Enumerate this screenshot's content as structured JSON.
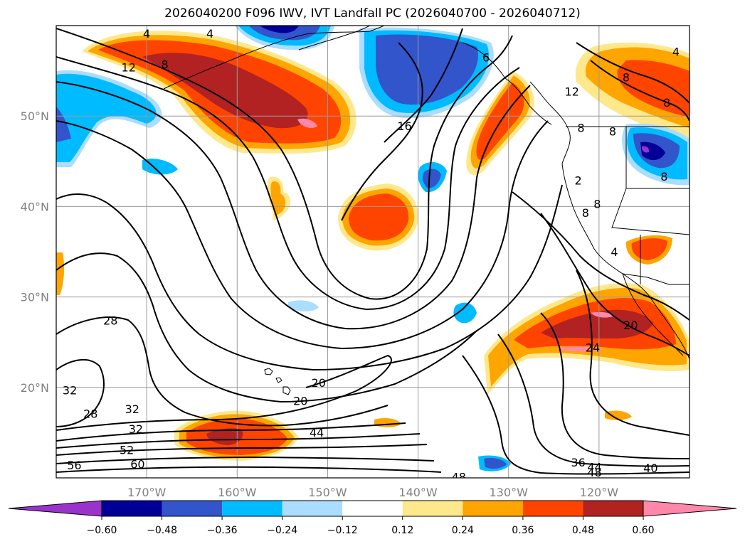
{
  "title": "2026040200 F096 IWV, IVT Landfall PC (2026040700 - 2026040712)",
  "map": {
    "lon_range": [
      -180,
      -110
    ],
    "lat_range": [
      10,
      60
    ],
    "lat_ticks": [
      {
        "value": 20,
        "label": "20°N"
      },
      {
        "value": 30,
        "label": "30°N"
      },
      {
        "value": 40,
        "label": "40°N"
      },
      {
        "value": 50,
        "label": "50°N"
      }
    ],
    "lon_ticks": [
      {
        "value": -170,
        "label": "170°W"
      },
      {
        "value": -160,
        "label": "160°W"
      },
      {
        "value": -150,
        "label": "150°W"
      },
      {
        "value": -140,
        "label": "140°W"
      },
      {
        "value": -130,
        "label": "130°W"
      },
      {
        "value": -120,
        "label": "120°W"
      }
    ],
    "grid": true
  },
  "contour_labels": [
    {
      "text": "4",
      "lon": -170,
      "lat": 59
    },
    {
      "text": "4",
      "lon": -163,
      "lat": 59
    },
    {
      "text": "12",
      "lon": -172,
      "lat": 55.3
    },
    {
      "text": "8",
      "lon": -168,
      "lat": 55.6
    },
    {
      "text": "6",
      "lon": -132.5,
      "lat": 56.4
    },
    {
      "text": "12",
      "lon": -123,
      "lat": 52.6
    },
    {
      "text": "8",
      "lon": -117,
      "lat": 54.2
    },
    {
      "text": "4",
      "lon": -111.5,
      "lat": 57
    },
    {
      "text": "8",
      "lon": -112.5,
      "lat": 51.4
    },
    {
      "text": "16",
      "lon": -141.5,
      "lat": 48.8
    },
    {
      "text": "8",
      "lon": -122,
      "lat": 48.6
    },
    {
      "text": "8",
      "lon": -118.5,
      "lat": 48.2
    },
    {
      "text": "2",
      "lon": -122.3,
      "lat": 42.8
    },
    {
      "text": "8",
      "lon": -120.2,
      "lat": 40.2
    },
    {
      "text": "8",
      "lon": -112.8,
      "lat": 43.2
    },
    {
      "text": "8",
      "lon": -121.5,
      "lat": 39.2
    },
    {
      "text": "4",
      "lon": -118.3,
      "lat": 34.9
    },
    {
      "text": "28",
      "lon": -174,
      "lat": 27.3
    },
    {
      "text": "20",
      "lon": -116.5,
      "lat": 26.8
    },
    {
      "text": "24",
      "lon": -120.7,
      "lat": 24.3
    },
    {
      "text": "20",
      "lon": -151,
      "lat": 20.4
    },
    {
      "text": "20",
      "lon": -153,
      "lat": 18.4
    },
    {
      "text": "32",
      "lon": -178.5,
      "lat": 19.6
    },
    {
      "text": "28",
      "lon": -176.2,
      "lat": 17
    },
    {
      "text": "32",
      "lon": -171.6,
      "lat": 17.5
    },
    {
      "text": "32",
      "lon": -171.2,
      "lat": 15.3
    },
    {
      "text": "44",
      "lon": -151.2,
      "lat": 14.9
    },
    {
      "text": "52",
      "lon": -172.2,
      "lat": 13
    },
    {
      "text": "56",
      "lon": -178,
      "lat": 11.3
    },
    {
      "text": "60",
      "lon": -171,
      "lat": 11.4
    },
    {
      "text": "36",
      "lon": -122.3,
      "lat": 11.6
    },
    {
      "text": "44",
      "lon": -120.5,
      "lat": 11.1
    },
    {
      "text": "48",
      "lon": -120.5,
      "lat": 10.5
    },
    {
      "text": "40",
      "lon": -114.3,
      "lat": 11
    },
    {
      "text": "48",
      "lon": -135.5,
      "lat": 10
    }
  ],
  "colorbar": {
    "levels": [
      -0.6,
      -0.48,
      -0.36,
      -0.24,
      -0.12,
      0.12,
      0.24,
      0.36,
      0.48,
      0.6
    ],
    "tick_labels": [
      "−0.60",
      "−0.48",
      "−0.36",
      "−0.24",
      "−0.12",
      "0.12",
      "0.24",
      "0.36",
      "0.48",
      "0.60"
    ],
    "colors": [
      "#9933CC",
      "#000099",
      "#3355CC",
      "#00BBFF",
      "#AADDFF",
      "#FFFFFF",
      "#FFE88C",
      "#FFA500",
      "#FF4400",
      "#B22222",
      "#FF88AA"
    ],
    "extend": "both"
  }
}
